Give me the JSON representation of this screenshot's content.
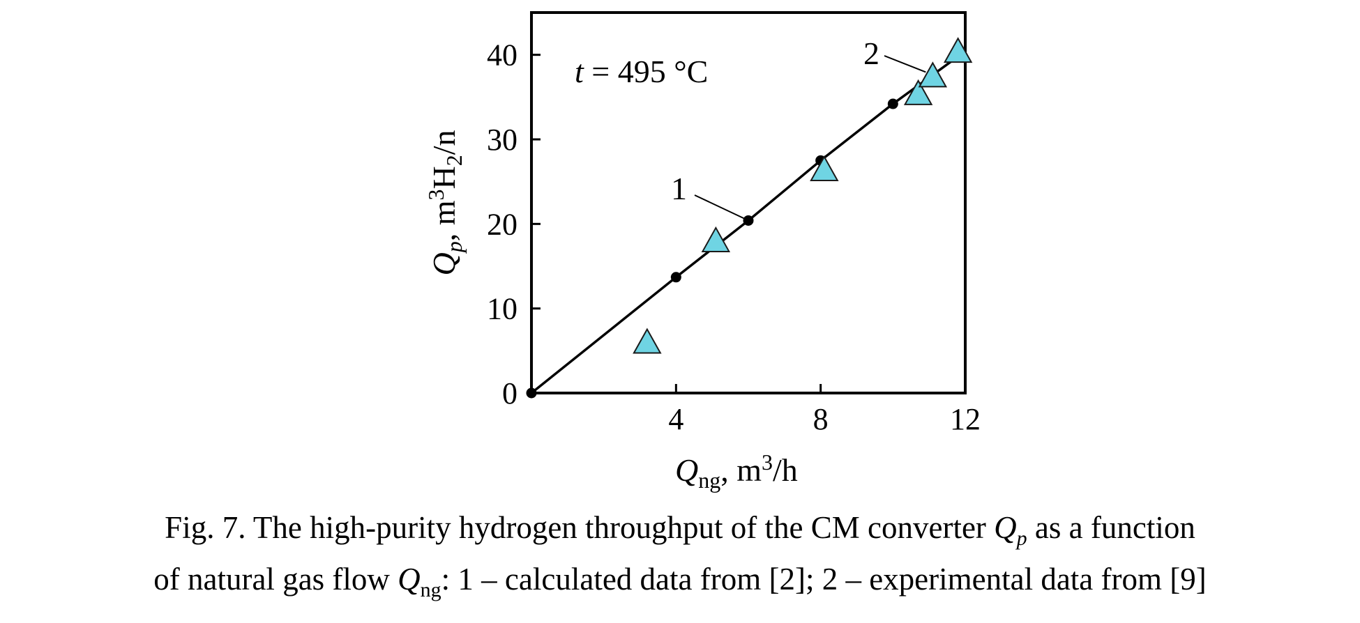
{
  "chart_data": {
    "type": "line",
    "xlabel": {
      "symbol": "Q",
      "sub": "ng",
      "unit_pre": ", m",
      "unit_sup": "3",
      "unit_post": "/h"
    },
    "ylabel": {
      "symbol": "Q",
      "sub": "p",
      "unit_pre": ", m",
      "unit_sup": "3",
      "unit_mid": "H",
      "unit_sub": "2",
      "unit_post": "/n"
    },
    "xlim": [
      0,
      12
    ],
    "ylim": [
      0,
      45
    ],
    "x_ticks": [
      4,
      8,
      12
    ],
    "y_ticks": [
      0,
      10,
      20,
      30,
      40
    ],
    "grid": false,
    "annotation": {
      "var": "t",
      "text": " = 495 °C"
    },
    "series": [
      {
        "label": "1",
        "style": "line-with-circle-markers",
        "x": [
          0,
          4,
          6,
          8,
          10,
          11.8
        ],
        "y": [
          0,
          13.7,
          20.4,
          27.5,
          34.2,
          39.8
        ]
      },
      {
        "label": "2",
        "style": "triangle-markers",
        "x": [
          3.2,
          5.1,
          8.1,
          10.7,
          11.1,
          11.8
        ],
        "y": [
          5.8,
          17.8,
          26.2,
          35.2,
          37.3,
          40.2
        ]
      }
    ],
    "colors": {
      "line": "#000000",
      "triangle_fill": "#6fd4e3",
      "triangle_stroke": "#1a1a1a"
    }
  },
  "caption": {
    "line1_text": "Fig. 7. The high-purity hydrogen throughput of the CM converter ",
    "line1_var": "Q",
    "line1_sub": "p",
    "line1_tail": " as a function",
    "line2_text": "of natural gas flow ",
    "line2_var": "Q",
    "line2_sub": "ng",
    "line2_tail": ": 1 – calculated data from [2]; 2 – experimental data from [9]"
  }
}
